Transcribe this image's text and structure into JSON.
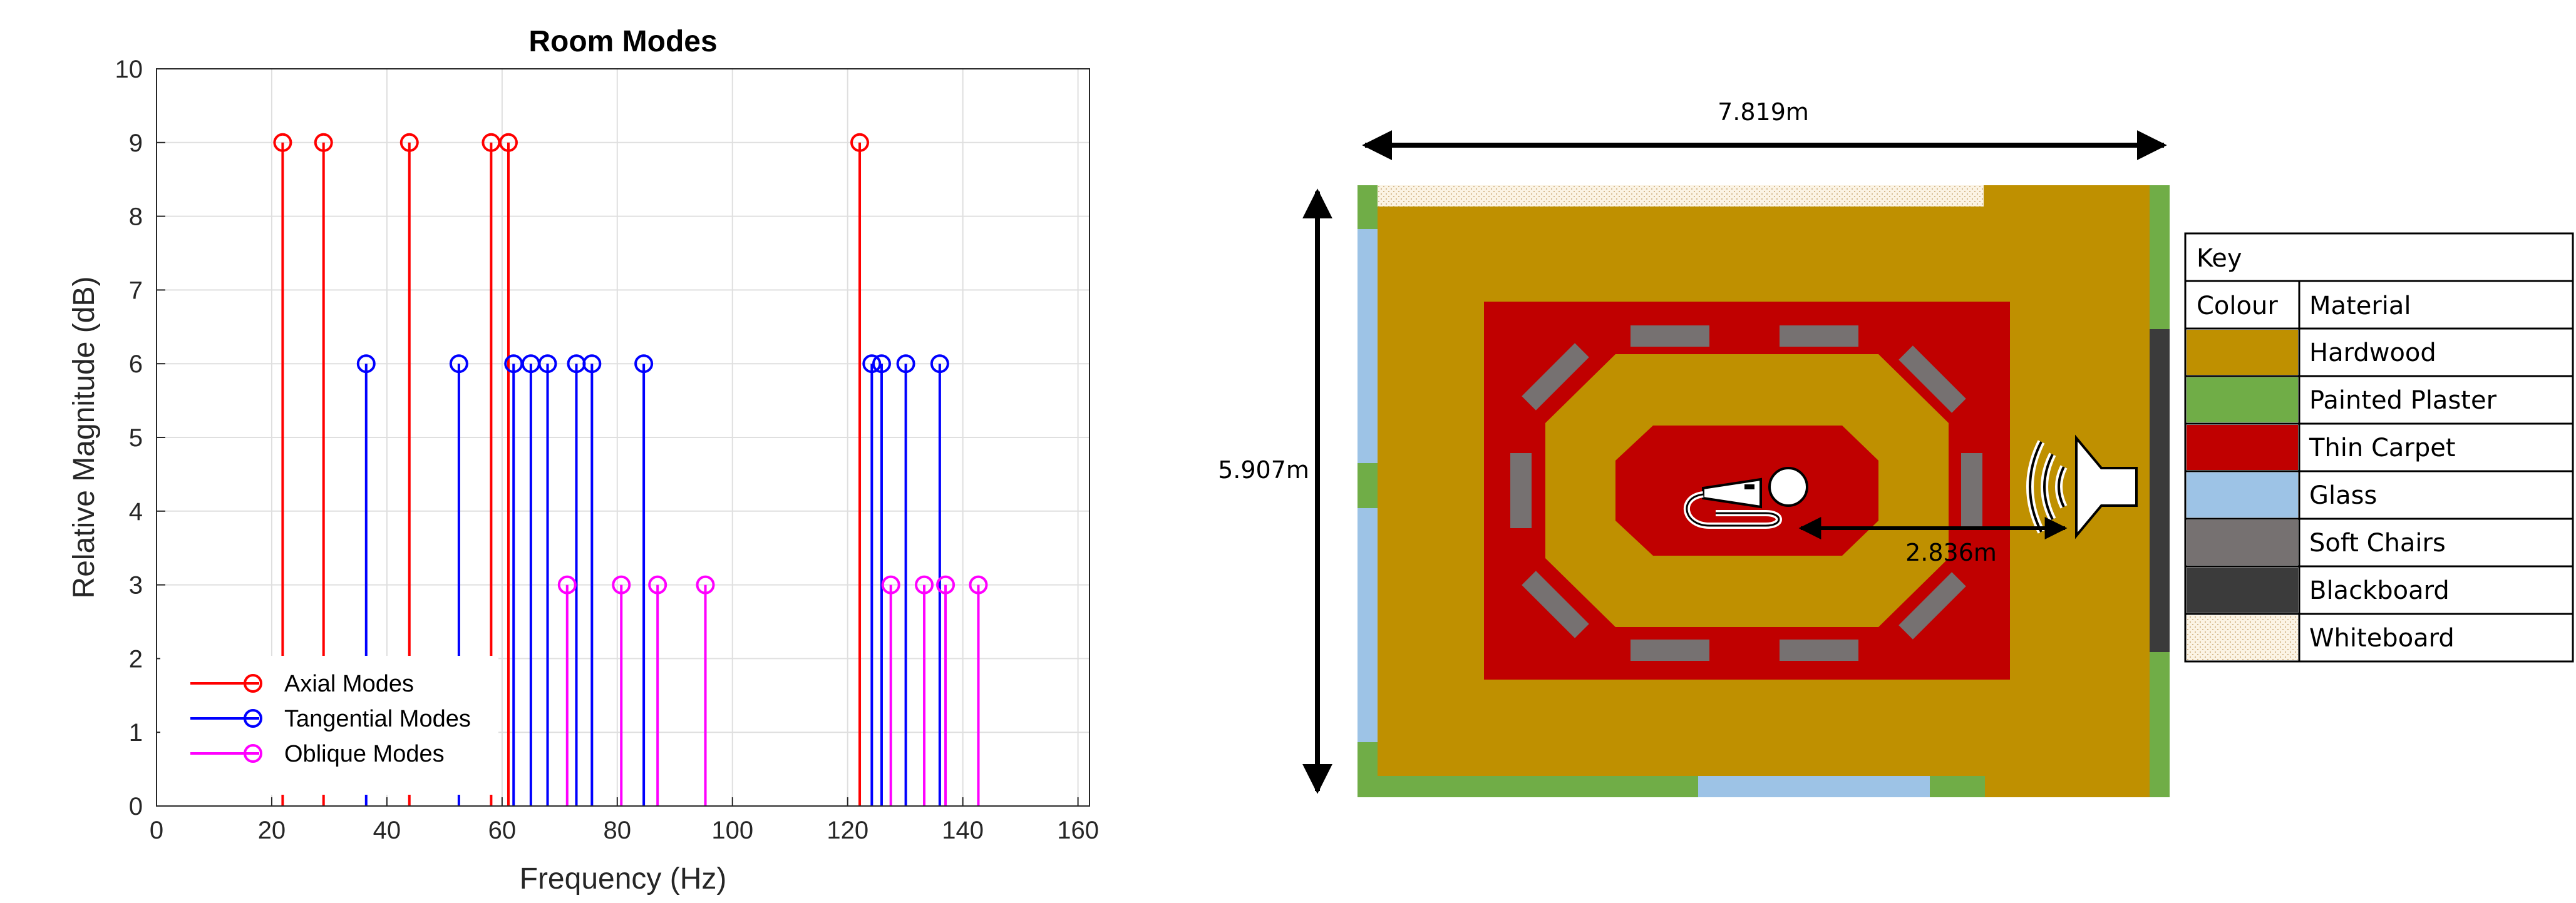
{
  "chart_data": {
    "type": "stem",
    "title": "Room Modes",
    "xlabel": "Frequency (Hz)",
    "ylabel": "Relative Magnitude (dB)",
    "xlim": [
      0,
      162
    ],
    "ylim": [
      0,
      10
    ],
    "xticks": [
      0,
      20,
      40,
      60,
      80,
      100,
      120,
      140,
      160
    ],
    "yticks": [
      0,
      1,
      2,
      3,
      4,
      5,
      6,
      7,
      8,
      9,
      10
    ],
    "grid": true,
    "legend_position": "bottom-left",
    "series": [
      {
        "name": "Axial Modes",
        "color": "#ff0000",
        "y": 9,
        "x": [
          21.9,
          29.0,
          43.9,
          58.1,
          61.1,
          122.1
        ]
      },
      {
        "name": "Tangential Modes",
        "color": "#0000ff",
        "y": 6,
        "x": [
          36.4,
          52.5,
          62.0,
          65.0,
          67.9,
          72.9,
          75.6,
          84.6,
          124.2,
          125.9,
          130.1,
          136.0
        ]
      },
      {
        "name": "Oblique Modes",
        "color": "#ff00ff",
        "y": 3,
        "x": [
          71.3,
          80.7,
          87.0,
          95.3,
          127.5,
          133.3,
          137.0,
          142.7
        ]
      }
    ]
  },
  "floorplan": {
    "width_label": "7.819m",
    "height_label": "5.907m",
    "distance_label": "2.836m",
    "colors": {
      "hardwood": "#bf9000",
      "plaster": "#70ad47",
      "carpet": "#c00000",
      "glass": "#9dc3e6",
      "chairs": "#767171",
      "blackboard": "#3b3b3b",
      "whiteboard": "#fbf3e4"
    },
    "icons": [
      "microphone-icon",
      "speaker-icon"
    ]
  },
  "key": {
    "title": "Key",
    "col_colour": "Colour",
    "col_material": "Material",
    "rows": [
      {
        "material": "Hardwood",
        "color": "#bf9000"
      },
      {
        "material": "Painted Plaster",
        "color": "#70ad47"
      },
      {
        "material": "Thin Carpet",
        "color": "#c00000"
      },
      {
        "material": "Glass",
        "color": "#9dc3e6"
      },
      {
        "material": "Soft Chairs",
        "color": "#767171"
      },
      {
        "material": "Blackboard",
        "color": "#3b3b3b"
      },
      {
        "material": "Whiteboard",
        "color": "#fbf3e4",
        "pattern": "dotted"
      }
    ]
  }
}
